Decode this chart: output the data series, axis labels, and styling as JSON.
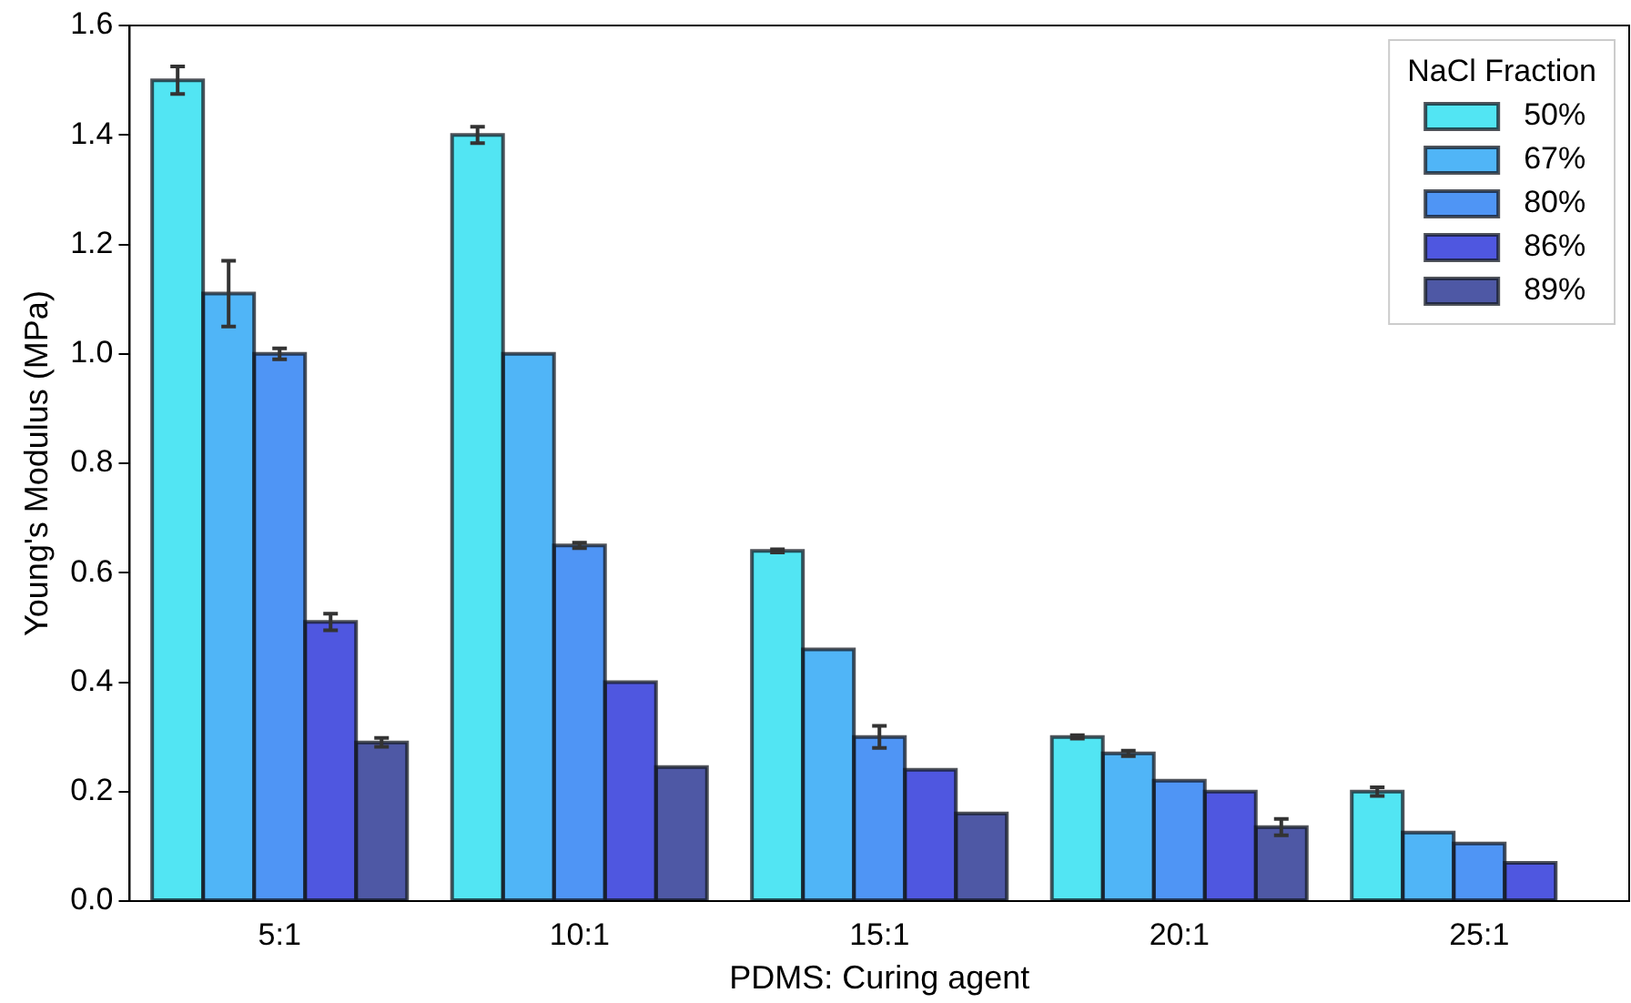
{
  "chart_data": {
    "type": "bar",
    "xlabel": "PDMS: Curing agent",
    "ylabel": "Young's Modulus (MPa)",
    "legend_title": "NaCl Fraction",
    "categories": [
      "5:1",
      "10:1",
      "15:1",
      "20:1",
      "25:1"
    ],
    "series": [
      {
        "name": "50%",
        "color": "#52e5f3",
        "values": [
          1.5,
          1.4,
          0.64,
          0.3,
          0.2
        ],
        "errors": [
          0.025,
          0.015,
          0.003,
          0.003,
          0.008
        ]
      },
      {
        "name": "67%",
        "color": "#50b5f7",
        "values": [
          1.11,
          1.0,
          0.46,
          0.27,
          0.125
        ],
        "errors": [
          0.06,
          null,
          null,
          0.005,
          null
        ]
      },
      {
        "name": "80%",
        "color": "#4f95f5",
        "values": [
          1.0,
          0.65,
          0.3,
          0.22,
          0.105
        ],
        "errors": [
          0.01,
          0.005,
          0.02,
          null,
          null
        ]
      },
      {
        "name": "86%",
        "color": "#4f57e0",
        "values": [
          0.51,
          0.4,
          0.24,
          0.2,
          0.07
        ],
        "errors": [
          0.015,
          null,
          null,
          null,
          null
        ]
      },
      {
        "name": "89%",
        "color": "#4e58a5",
        "values": [
          0.29,
          0.245,
          0.16,
          0.135,
          0
        ],
        "errors": [
          0.008,
          null,
          null,
          0.015,
          null
        ]
      }
    ],
    "ylim": [
      0,
      1.6
    ],
    "yticks": [
      {
        "value": 0,
        "label": "0.0"
      },
      0.2,
      0.4,
      0.6,
      0.8,
      {
        "value": 1,
        "label": "1.0"
      },
      1.2,
      1.4,
      1.6
    ],
    "grid": false,
    "legend": "top right"
  }
}
